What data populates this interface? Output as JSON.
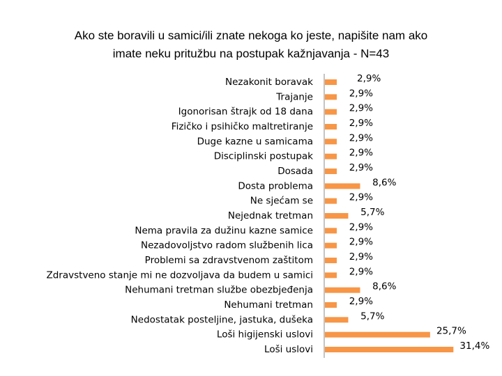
{
  "chart_data": {
    "type": "hbar",
    "title": [
      "Ako ste boravili u samici/ili znate nekoga ko jeste, napišite nam ako",
      "imate neku pritužbu na postupak kažnjavanja - N=43"
    ],
    "categories": [
      "Nezakonit boravak",
      "Trajanje",
      "Igonorisan štrajk od 18 dana",
      "Fizičko i psihičko maltretiranje",
      "Duge kazne u samicama",
      "Disciplinski postupak",
      "Dosada",
      "Dosta problema",
      "Ne sjećam se",
      "Nejednak tretman",
      "Nema pravila za dužinu kazne samice",
      "Nezadovoljstvo radom službenih lica",
      "Problemi sa zdravstvenom zaštitom",
      "Zdravstveno stanje mi ne dozvoljava da budem u samici",
      "Nehumani tretman službe obezbjeđenja",
      "Nehumani tretman",
      "Nedostatak posteljine, jastuka, dušeka",
      "Loši higijenski uslovi",
      "Loši uslovi"
    ],
    "values": [
      2.9,
      2.9,
      2.9,
      2.9,
      2.9,
      2.9,
      2.9,
      8.6,
      2.9,
      5.7,
      2.9,
      2.9,
      2.9,
      2.9,
      8.6,
      2.9,
      5.7,
      25.7,
      31.4
    ],
    "value_labels": [
      "2,9%",
      "2,9%",
      "2,9%",
      "2,9%",
      "2,9%",
      "2,9%",
      "2,9%",
      "8,6%",
      "2,9%",
      "5,7%",
      "2,9%",
      "2,9%",
      "2,9%",
      "2,9%",
      "8,6%",
      "2,9%",
      "5,7%",
      "25,7%",
      "31,4%"
    ],
    "color": "#f79646"
  }
}
